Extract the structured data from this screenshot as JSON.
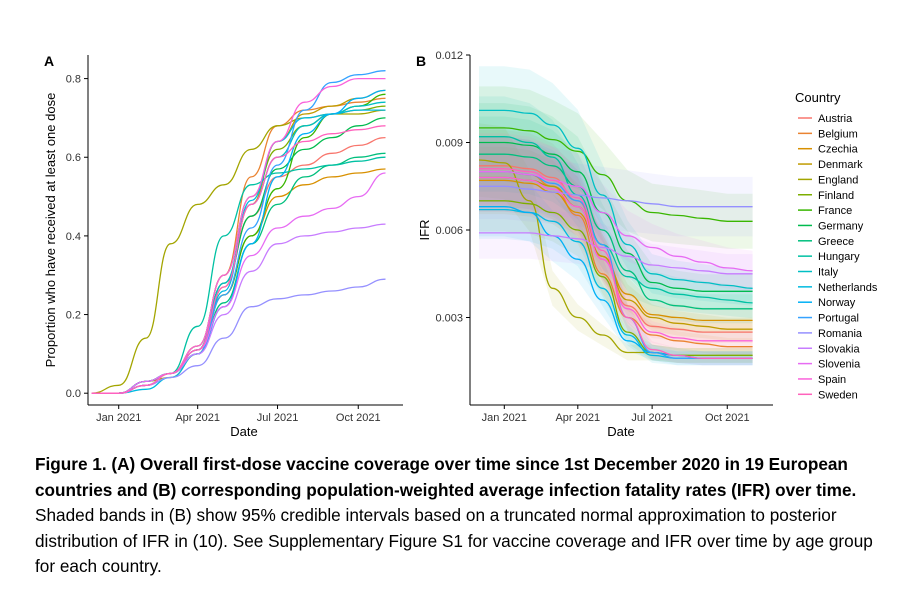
{
  "caption": {
    "bold": "Figure 1. (A) Overall first-dose vaccine coverage over time since 1st December 2020 in 19 European countries and (B) corresponding population-weighted average infection fatality rates (IFR) over time.",
    "rest": " Shaded bands in (B) show 95% credible intervals based on a truncated normal approximation to posterior distribution of IFR in (10). See Supplementary Figure S1 for vaccine coverage and IFR over time by age group for each country."
  },
  "legend": {
    "title": "Country",
    "colors": [
      "#F8766D",
      "#EA8331",
      "#D89000",
      "#C09B00",
      "#A3A500",
      "#7CAE00",
      "#39B600",
      "#00BB4E",
      "#00BF7D",
      "#00C1A3",
      "#00BFC4",
      "#00BAE0",
      "#00B0F6",
      "#35A2FF",
      "#9590FF",
      "#C77CFF",
      "#E76BF3",
      "#FA62DB",
      "#FF62BC"
    ]
  },
  "chart_data": [
    {
      "type": "line",
      "panel_label": "A",
      "xlabel": "Date",
      "ylabel": "Proportion who have received at least one dose",
      "x_ticks": [
        "Jan 2021",
        "Apr 2021",
        "Jul 2021",
        "Oct 2021"
      ],
      "y_ticks": [
        "0.0",
        "0.2",
        "0.4",
        "0.6",
        "0.8"
      ],
      "xlim": [
        "2020-11-27",
        "2021-11-21"
      ],
      "ylim": [
        -0.03,
        0.86
      ],
      "x_dates": [
        "2020-12-01",
        "2021-01-01",
        "2021-02-01",
        "2021-03-01",
        "2021-04-01",
        "2021-05-01",
        "2021-06-01",
        "2021-07-01",
        "2021-08-01",
        "2021-09-01",
        "2021-10-01",
        "2021-11-01"
      ],
      "series": [
        {
          "name": "Austria",
          "values": [
            0,
            0,
            0.03,
            0.05,
            0.11,
            0.28,
            0.45,
            0.55,
            0.58,
            0.61,
            0.63,
            0.65
          ]
        },
        {
          "name": "Belgium",
          "values": [
            0,
            0,
            0.02,
            0.05,
            0.12,
            0.3,
            0.55,
            0.68,
            0.72,
            0.73,
            0.74,
            0.75
          ]
        },
        {
          "name": "Czechia",
          "values": [
            0,
            0,
            0.02,
            0.05,
            0.1,
            0.25,
            0.4,
            0.5,
            0.53,
            0.55,
            0.56,
            0.57
          ]
        },
        {
          "name": "Denmark",
          "values": [
            0,
            0,
            0.03,
            0.04,
            0.1,
            0.27,
            0.48,
            0.64,
            0.71,
            0.73,
            0.75,
            0.77
          ]
        },
        {
          "name": "England",
          "values": [
            0,
            0.02,
            0.14,
            0.38,
            0.48,
            0.53,
            0.62,
            0.68,
            0.7,
            0.71,
            0.71,
            0.72
          ]
        },
        {
          "name": "Finland",
          "values": [
            0,
            0,
            0.03,
            0.05,
            0.12,
            0.3,
            0.5,
            0.62,
            0.68,
            0.71,
            0.72,
            0.73
          ]
        },
        {
          "name": "France",
          "values": [
            0,
            0,
            0.02,
            0.05,
            0.11,
            0.25,
            0.4,
            0.52,
            0.65,
            0.71,
            0.73,
            0.76
          ]
        },
        {
          "name": "Germany",
          "values": [
            0,
            0,
            0.03,
            0.05,
            0.11,
            0.28,
            0.45,
            0.57,
            0.62,
            0.65,
            0.68,
            0.7
          ]
        },
        {
          "name": "Greece",
          "values": [
            0,
            0,
            0.03,
            0.05,
            0.1,
            0.23,
            0.38,
            0.48,
            0.55,
            0.58,
            0.6,
            0.61
          ]
        },
        {
          "name": "Hungary",
          "values": [
            0,
            0,
            0.02,
            0.05,
            0.17,
            0.4,
            0.53,
            0.56,
            0.57,
            0.58,
            0.59,
            0.6
          ]
        },
        {
          "name": "Italy",
          "values": [
            0,
            0,
            0.02,
            0.05,
            0.11,
            0.28,
            0.48,
            0.6,
            0.68,
            0.71,
            0.73,
            0.74
          ]
        },
        {
          "name": "Netherlands",
          "values": [
            0,
            0,
            0.01,
            0.04,
            0.1,
            0.26,
            0.49,
            0.64,
            0.7,
            0.71,
            0.72,
            0.72
          ]
        },
        {
          "name": "Norway",
          "values": [
            0,
            0,
            0.03,
            0.05,
            0.1,
            0.22,
            0.38,
            0.55,
            0.66,
            0.71,
            0.75,
            0.77
          ]
        },
        {
          "name": "Portugal",
          "values": [
            0,
            0,
            0.02,
            0.05,
            0.1,
            0.25,
            0.42,
            0.58,
            0.72,
            0.79,
            0.81,
            0.82
          ]
        },
        {
          "name": "Romania",
          "values": [
            0,
            0,
            0.02,
            0.04,
            0.07,
            0.14,
            0.22,
            0.24,
            0.25,
            0.26,
            0.27,
            0.29
          ]
        },
        {
          "name": "Slovakia",
          "values": [
            0,
            0,
            0.02,
            0.05,
            0.1,
            0.2,
            0.31,
            0.38,
            0.4,
            0.41,
            0.42,
            0.43
          ]
        },
        {
          "name": "Slovenia",
          "values": [
            0,
            0,
            0.03,
            0.05,
            0.11,
            0.22,
            0.35,
            0.42,
            0.45,
            0.47,
            0.5,
            0.56
          ]
        },
        {
          "name": "Spain",
          "values": [
            0,
            0,
            0.02,
            0.05,
            0.12,
            0.3,
            0.5,
            0.64,
            0.74,
            0.78,
            0.8,
            0.8
          ]
        },
        {
          "name": "Sweden",
          "values": [
            0,
            0,
            0.02,
            0.05,
            0.11,
            0.27,
            0.48,
            0.6,
            0.64,
            0.66,
            0.67,
            0.68
          ]
        }
      ]
    },
    {
      "type": "line",
      "panel_label": "B",
      "xlabel": "Date",
      "ylabel": "IFR",
      "x_ticks": [
        "Jan 2021",
        "Apr 2021",
        "Jul 2021",
        "Oct 2021"
      ],
      "y_ticks": [
        "0.003",
        "0.006",
        "0.009",
        "0.012"
      ],
      "xlim": [
        "2020-11-20",
        "2021-11-26"
      ],
      "ylim": [
        0.0,
        0.012
      ],
      "x_dates": [
        "2020-12-01",
        "2021-01-01",
        "2021-02-01",
        "2021-03-01",
        "2021-04-01",
        "2021-05-01",
        "2021-06-01",
        "2021-07-01",
        "2021-08-01",
        "2021-09-01",
        "2021-10-01",
        "2021-11-01"
      ],
      "credible_band_relative_halfwidth": 0.15,
      "series": [
        {
          "name": "Austria",
          "values": [
            0.0082,
            0.0082,
            0.0081,
            0.0078,
            0.007,
            0.005,
            0.0034,
            0.0027,
            0.0026,
            0.0025,
            0.0025,
            0.0025
          ]
        },
        {
          "name": "Belgium",
          "values": [
            0.008,
            0.008,
            0.0079,
            0.0075,
            0.0065,
            0.0045,
            0.003,
            0.0024,
            0.0022,
            0.0021,
            0.002,
            0.002
          ]
        },
        {
          "name": "Czechia",
          "values": [
            0.0077,
            0.0077,
            0.0076,
            0.0073,
            0.0066,
            0.0051,
            0.0038,
            0.0031,
            0.003,
            0.0029,
            0.0029,
            0.0029
          ]
        },
        {
          "name": "Denmark",
          "values": [
            0.0078,
            0.0078,
            0.0077,
            0.0075,
            0.0068,
            0.0051,
            0.0036,
            0.003,
            0.0028,
            0.0027,
            0.0026,
            0.0026
          ]
        },
        {
          "name": "England",
          "values": [
            0.0084,
            0.0083,
            0.007,
            0.004,
            0.003,
            0.0024,
            0.0018,
            0.0018,
            0.0017,
            0.0017,
            0.0017,
            0.0017
          ]
        },
        {
          "name": "Finland",
          "values": [
            0.007,
            0.007,
            0.0069,
            0.0066,
            0.006,
            0.0044,
            0.0025,
            0.0018,
            0.0017,
            0.0017,
            0.0017,
            0.0017
          ]
        },
        {
          "name": "France",
          "values": [
            0.0095,
            0.0095,
            0.0094,
            0.0091,
            0.0087,
            0.0079,
            0.007,
            0.0066,
            0.0065,
            0.0064,
            0.0063,
            0.0063
          ]
        },
        {
          "name": "Germany",
          "values": [
            0.009,
            0.009,
            0.0089,
            0.0086,
            0.008,
            0.0066,
            0.0052,
            0.0042,
            0.004,
            0.0039,
            0.0039,
            0.0039
          ]
        },
        {
          "name": "Greece",
          "values": [
            0.0086,
            0.0086,
            0.0085,
            0.0082,
            0.0075,
            0.006,
            0.0046,
            0.0036,
            0.0034,
            0.0033,
            0.0033,
            0.0033
          ]
        },
        {
          "name": "Hungary",
          "values": [
            0.0092,
            0.0092,
            0.009,
            0.0085,
            0.0072,
            0.0055,
            0.0044,
            0.004,
            0.0038,
            0.0037,
            0.0036,
            0.0035
          ]
        },
        {
          "name": "Italy",
          "values": [
            0.0101,
            0.0101,
            0.01,
            0.0096,
            0.0088,
            0.0072,
            0.0055,
            0.0045,
            0.0043,
            0.0042,
            0.0041,
            0.004
          ]
        },
        {
          "name": "Netherlands",
          "values": [
            0.0067,
            0.0067,
            0.0066,
            0.0063,
            0.0056,
            0.004,
            0.0024,
            0.0017,
            0.0016,
            0.0016,
            0.0016,
            0.0016
          ]
        },
        {
          "name": "Norway",
          "values": [
            0.0068,
            0.0068,
            0.0066,
            0.0058,
            0.005,
            0.0036,
            0.0022,
            0.0018,
            0.0017,
            0.0016,
            0.0016,
            0.0016
          ]
        },
        {
          "name": "Portugal",
          "values": [
            0.008,
            0.008,
            0.0079,
            0.0076,
            0.007,
            0.0055,
            0.003,
            0.0018,
            0.0016,
            0.0016,
            0.0016,
            0.0016
          ]
        },
        {
          "name": "Romania",
          "values": [
            0.0075,
            0.0075,
            0.0074,
            0.0073,
            0.0072,
            0.0071,
            0.007,
            0.0069,
            0.0068,
            0.0068,
            0.0068,
            0.0068
          ]
        },
        {
          "name": "Slovakia",
          "values": [
            0.0059,
            0.0059,
            0.0059,
            0.0058,
            0.0057,
            0.0054,
            0.0051,
            0.0048,
            0.0047,
            0.0046,
            0.0045,
            0.0045
          ]
        },
        {
          "name": "Slovenia",
          "values": [
            0.008,
            0.008,
            0.0079,
            0.0077,
            0.0075,
            0.0066,
            0.0058,
            0.0054,
            0.0051,
            0.0049,
            0.0047,
            0.0046
          ]
        },
        {
          "name": "Spain",
          "values": [
            0.0078,
            0.0078,
            0.0077,
            0.0074,
            0.0068,
            0.005,
            0.0033,
            0.0025,
            0.0023,
            0.0022,
            0.0022,
            0.0022
          ]
        },
        {
          "name": "Sweden",
          "values": [
            0.0081,
            0.0081,
            0.008,
            0.0077,
            0.0071,
            0.0053,
            0.003,
            0.0019,
            0.0017,
            0.0016,
            0.0016,
            0.0016
          ]
        }
      ]
    }
  ]
}
